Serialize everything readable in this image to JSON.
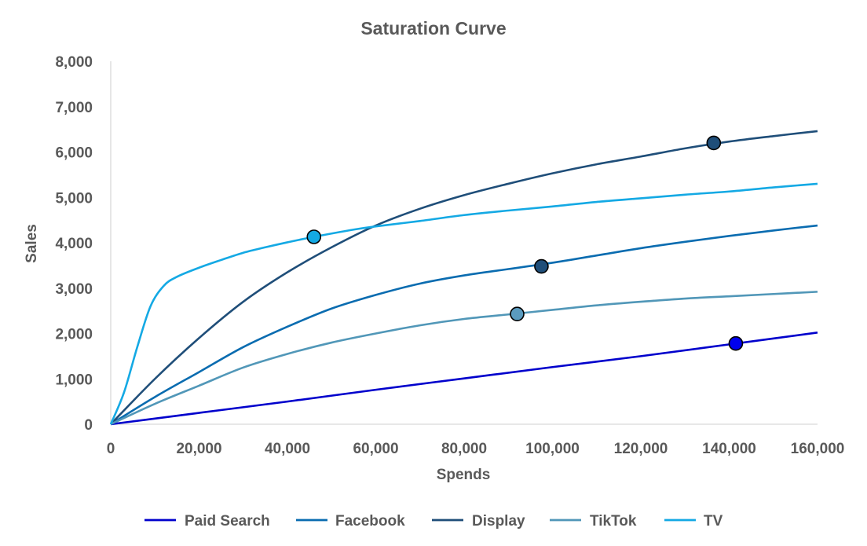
{
  "chart_data": {
    "type": "line",
    "title": "Saturation Curve",
    "xlabel": "Spends",
    "ylabel": "Sales",
    "xlim": [
      0,
      160000
    ],
    "ylim": [
      0,
      8000
    ],
    "x_ticks": [
      "0",
      "20,000",
      "40,000",
      "60,000",
      "80,000",
      "100,000",
      "120,000",
      "140,000",
      "160,000"
    ],
    "y_ticks": [
      "0",
      "1,000",
      "2,000",
      "3,000",
      "4,000",
      "5,000",
      "6,000",
      "7,000",
      "8,000"
    ],
    "x_tick_values": [
      0,
      20000,
      40000,
      60000,
      80000,
      100000,
      120000,
      140000,
      160000
    ],
    "y_tick_values": [
      0,
      1000,
      2000,
      3000,
      4000,
      5000,
      6000,
      7000,
      8000
    ],
    "grid": false,
    "legend_position": "bottom",
    "series": [
      {
        "name": "Paid Search",
        "color": "#0000CC",
        "marker_fill": "#0000EE",
        "points": [
          [
            0,
            0
          ],
          [
            20000,
            250
          ],
          [
            40000,
            500
          ],
          [
            60000,
            760
          ],
          [
            80000,
            1010
          ],
          [
            100000,
            1260
          ],
          [
            120000,
            1500
          ],
          [
            140000,
            1760
          ],
          [
            160000,
            2020
          ]
        ],
        "marker": [
          141500,
          1780
        ]
      },
      {
        "name": "Facebook",
        "color": "#0A6CB0",
        "marker_fill": "#1F4E79",
        "points": [
          [
            0,
            0
          ],
          [
            10000,
            600
          ],
          [
            20000,
            1150
          ],
          [
            30000,
            1700
          ],
          [
            40000,
            2150
          ],
          [
            50000,
            2550
          ],
          [
            60000,
            2850
          ],
          [
            70000,
            3100
          ],
          [
            80000,
            3280
          ],
          [
            90000,
            3420
          ],
          [
            100000,
            3560
          ],
          [
            110000,
            3720
          ],
          [
            120000,
            3880
          ],
          [
            130000,
            4020
          ],
          [
            140000,
            4150
          ],
          [
            150000,
            4270
          ],
          [
            160000,
            4380
          ]
        ],
        "marker": [
          97500,
          3480
        ]
      },
      {
        "name": "Display",
        "color": "#1F4E79",
        "marker_fill": "#1F4E79",
        "points": [
          [
            0,
            0
          ],
          [
            10000,
            1000
          ],
          [
            20000,
            1900
          ],
          [
            30000,
            2700
          ],
          [
            40000,
            3350
          ],
          [
            50000,
            3900
          ],
          [
            60000,
            4380
          ],
          [
            70000,
            4750
          ],
          [
            80000,
            5050
          ],
          [
            90000,
            5300
          ],
          [
            100000,
            5530
          ],
          [
            110000,
            5730
          ],
          [
            120000,
            5900
          ],
          [
            130000,
            6080
          ],
          [
            140000,
            6230
          ],
          [
            150000,
            6350
          ],
          [
            160000,
            6460
          ]
        ],
        "marker": [
          136500,
          6200
        ]
      },
      {
        "name": "TikTok",
        "color": "#5197B8",
        "marker_fill": "#5B9BBF",
        "points": [
          [
            0,
            0
          ],
          [
            10000,
            450
          ],
          [
            20000,
            850
          ],
          [
            30000,
            1250
          ],
          [
            40000,
            1550
          ],
          [
            50000,
            1800
          ],
          [
            60000,
            2000
          ],
          [
            70000,
            2180
          ],
          [
            80000,
            2320
          ],
          [
            90000,
            2420
          ],
          [
            100000,
            2520
          ],
          [
            110000,
            2620
          ],
          [
            120000,
            2700
          ],
          [
            130000,
            2770
          ],
          [
            140000,
            2820
          ],
          [
            150000,
            2870
          ],
          [
            160000,
            2920
          ]
        ],
        "marker": [
          92000,
          2430
        ]
      },
      {
        "name": "TV",
        "color": "#14A9E4",
        "marker_fill": "#14A9E4",
        "points": [
          [
            0,
            0
          ],
          [
            3000,
            700
          ],
          [
            6000,
            1700
          ],
          [
            9000,
            2600
          ],
          [
            12000,
            3050
          ],
          [
            15000,
            3250
          ],
          [
            20000,
            3450
          ],
          [
            25000,
            3620
          ],
          [
            30000,
            3780
          ],
          [
            35000,
            3900
          ],
          [
            40000,
            4010
          ],
          [
            46000,
            4130
          ],
          [
            55000,
            4290
          ],
          [
            60000,
            4360
          ],
          [
            70000,
            4480
          ],
          [
            80000,
            4610
          ],
          [
            90000,
            4710
          ],
          [
            100000,
            4800
          ],
          [
            110000,
            4900
          ],
          [
            120000,
            4980
          ],
          [
            130000,
            5060
          ],
          [
            140000,
            5130
          ],
          [
            150000,
            5220
          ],
          [
            160000,
            5300
          ]
        ],
        "marker": [
          46000,
          4130
        ]
      }
    ]
  }
}
